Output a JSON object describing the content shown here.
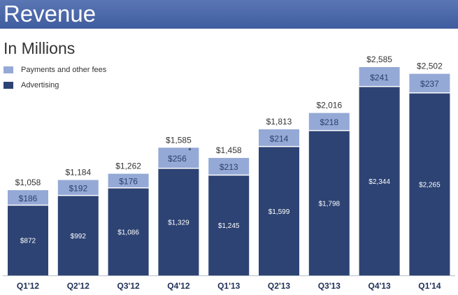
{
  "header": {
    "title": "Revenue",
    "subtitle": "In Millions"
  },
  "legend": [
    {
      "label": "Payments and other fees",
      "color": "#95a9d6"
    },
    {
      "label": "Advertising",
      "color": "#2d4373"
    }
  ],
  "colors": {
    "advertising": "#2d4373",
    "payments": "#95a9d6",
    "banner": "#4a67a8"
  },
  "chart_data": {
    "type": "bar",
    "stacked": true,
    "title": "Revenue",
    "subtitle": "In Millions",
    "categories": [
      "Q1'12",
      "Q2'12",
      "Q3'12",
      "Q4'12",
      "Q1'13",
      "Q2'13",
      "Q3'13",
      "Q4'13",
      "Q1'14"
    ],
    "series": [
      {
        "name": "Advertising",
        "values": [
          872,
          992,
          1086,
          1329,
          1245,
          1599,
          1798,
          2344,
          2265
        ],
        "labels": [
          "$872",
          "$992",
          "$1,086",
          "$1,329",
          "$1,245",
          "$1,599",
          "$1,798",
          "$2,344",
          "$2,265"
        ]
      },
      {
        "name": "Payments and other fees",
        "values": [
          186,
          192,
          176,
          256,
          213,
          214,
          218,
          241,
          237
        ],
        "labels": [
          "$186",
          "$192",
          "$176",
          "$256*",
          "$213",
          "$214",
          "$218",
          "$241",
          "$237"
        ]
      }
    ],
    "totals": [
      1058,
      1184,
      1262,
      1585,
      1458,
      1813,
      2016,
      2585,
      2502
    ],
    "total_labels": [
      "$1,058",
      "$1,184",
      "$1,262",
      "$1,585",
      "$1,458",
      "$1,813",
      "$2,016",
      "$2,585",
      "$2,502"
    ],
    "annotation": {
      "category": "Q4'12",
      "series": "Payments and other fees",
      "mark": "*"
    },
    "xlabel": "",
    "ylabel": "",
    "ylim": [
      0,
      2585
    ],
    "grid": false,
    "legend_position": "top-left"
  }
}
